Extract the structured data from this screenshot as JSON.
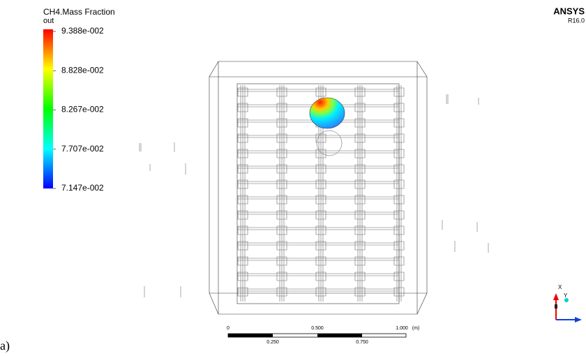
{
  "legend": {
    "title": "CH4.Mass Fraction",
    "subtitle": "out",
    "labels": [
      "9.388e-002",
      "8.828e-002",
      "8.267e-002",
      "7.707e-002",
      "7.147e-002"
    ]
  },
  "logo": {
    "name": "ANSYS",
    "version": "R16.0"
  },
  "scale_bar": {
    "top_labels": [
      "0",
      "0.500",
      "1.000"
    ],
    "unit": "(m)",
    "bottom_labels": [
      "0.250",
      "0.750"
    ]
  },
  "triad": {
    "x_label": "X",
    "y_label": "Y"
  },
  "caption": "a)"
}
